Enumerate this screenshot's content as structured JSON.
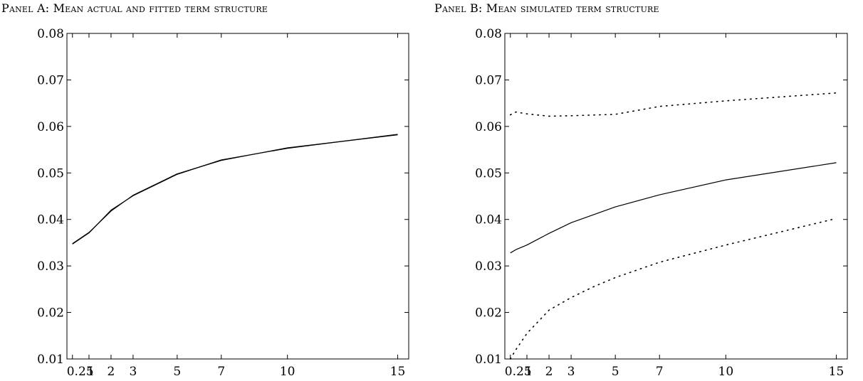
{
  "chart_data": [
    {
      "type": "line",
      "title": "Panel A: Mean actual and fitted term structure",
      "xlabel": "",
      "ylabel": "",
      "xlim": [
        0,
        15.5
      ],
      "ylim": [
        0.01,
        0.08
      ],
      "x_ticks": [
        0.25,
        1,
        2,
        3,
        5,
        7,
        10,
        15
      ],
      "x_tick_labels": [
        "0.25",
        "1",
        "2",
        "3",
        "5",
        "7",
        "10",
        "15"
      ],
      "y_ticks": [
        0.01,
        0.02,
        0.03,
        0.04,
        0.05,
        0.06,
        0.07,
        0.08
      ],
      "y_tick_labels": [
        "0.01",
        "0.02",
        "0.03",
        "0.04",
        "0.05",
        "0.06",
        "0.07",
        "0.08"
      ],
      "grid": false,
      "series": [
        {
          "style": "solid",
          "x": [
            0.25,
            1,
            2,
            3,
            5,
            7,
            10,
            15
          ],
          "y": [
            0.0348,
            0.0372,
            0.0418,
            0.0452,
            0.0498,
            0.0527,
            0.0554,
            0.0582
          ]
        },
        {
          "style": "solid",
          "x": [
            0.25,
            1,
            2,
            3,
            5,
            7,
            10,
            15
          ],
          "y": [
            0.0347,
            0.0371,
            0.042,
            0.0451,
            0.0497,
            0.0528,
            0.0553,
            0.0583
          ]
        }
      ]
    },
    {
      "type": "line",
      "title": "Panel B: Mean simulated term structure",
      "xlabel": "",
      "ylabel": "",
      "xlim": [
        0,
        15.5
      ],
      "ylim": [
        0.01,
        0.08
      ],
      "x_ticks": [
        0.25,
        1,
        2,
        3,
        5,
        7,
        10,
        15
      ],
      "x_tick_labels": [
        "0.25",
        "1",
        "2",
        "3",
        "5",
        "7",
        "10",
        "15"
      ],
      "y_ticks": [
        0.01,
        0.02,
        0.03,
        0.04,
        0.05,
        0.06,
        0.07,
        0.08
      ],
      "y_tick_labels": [
        "0.01",
        "0.02",
        "0.03",
        "0.04",
        "0.05",
        "0.06",
        "0.07",
        "0.08"
      ],
      "grid": false,
      "series": [
        {
          "style": "solid",
          "x": [
            0.25,
            0.5,
            1,
            2,
            3,
            5,
            7,
            10,
            15
          ],
          "y": [
            0.0328,
            0.0335,
            0.0345,
            0.037,
            0.0393,
            0.0427,
            0.0453,
            0.0485,
            0.0522
          ]
        },
        {
          "style": "dotted",
          "x": [
            0.25,
            0.5,
            1,
            2,
            3,
            5,
            7,
            10,
            15
          ],
          "y": [
            0.0625,
            0.0631,
            0.0627,
            0.0622,
            0.0623,
            0.0626,
            0.0643,
            0.0655,
            0.0672
          ]
        },
        {
          "style": "dotted",
          "x": [
            0.25,
            0.5,
            1,
            2,
            3,
            4,
            5,
            7,
            10,
            15
          ],
          "y": [
            0.01,
            0.012,
            0.0155,
            0.0205,
            0.0232,
            0.0255,
            0.0275,
            0.0308,
            0.0345,
            0.0402
          ]
        }
      ]
    }
  ]
}
